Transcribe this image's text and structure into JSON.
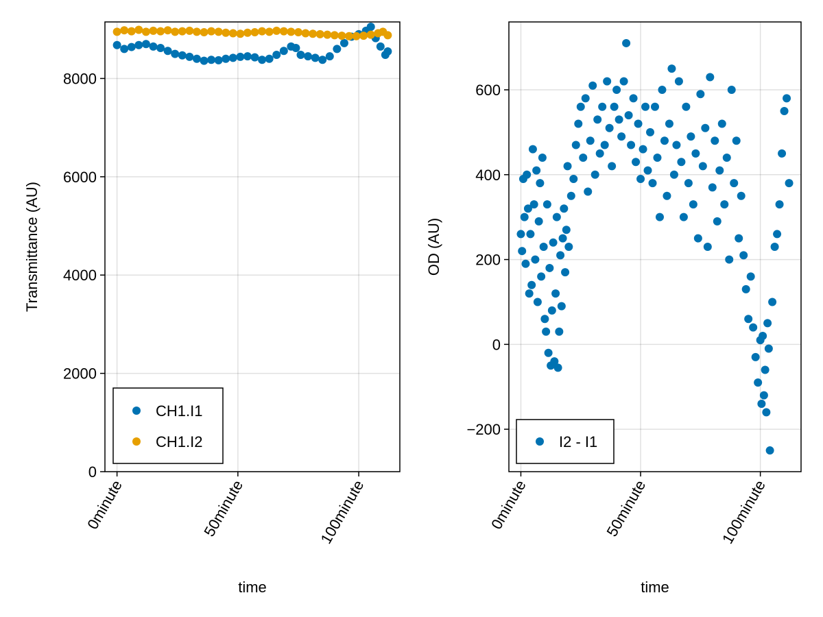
{
  "chart_data": [
    {
      "type": "scatter",
      "xlabel": "time",
      "ylabel": "Transmittance (AU)",
      "x_unit": "minute",
      "xlim": [
        -5,
        117
      ],
      "ylim": [
        0,
        9150
      ],
      "x_ticks": [
        0,
        50,
        100
      ],
      "x_tick_labels": [
        "0minute",
        "50minute",
        "100minute"
      ],
      "y_ticks": [
        0,
        2000,
        4000,
        6000,
        8000
      ],
      "y_tick_labels": [
        "0",
        "2000",
        "4000",
        "6000",
        "8000"
      ],
      "grid": true,
      "legend_position": "bottom-left",
      "series": [
        {
          "name": "CH1.I1",
          "color": "#0072b2",
          "points": [
            [
              0,
              8680
            ],
            [
              3,
              8600
            ],
            [
              6,
              8640
            ],
            [
              9,
              8680
            ],
            [
              12,
              8700
            ],
            [
              15,
              8650
            ],
            [
              18,
              8620
            ],
            [
              21,
              8560
            ],
            [
              24,
              8500
            ],
            [
              27,
              8470
            ],
            [
              30,
              8440
            ],
            [
              33,
              8400
            ],
            [
              36,
              8360
            ],
            [
              39,
              8380
            ],
            [
              42,
              8370
            ],
            [
              45,
              8400
            ],
            [
              48,
              8420
            ],
            [
              51,
              8440
            ],
            [
              54,
              8450
            ],
            [
              57,
              8430
            ],
            [
              60,
              8380
            ],
            [
              63,
              8400
            ],
            [
              66,
              8480
            ],
            [
              69,
              8560
            ],
            [
              72,
              8650
            ],
            [
              74,
              8620
            ],
            [
              76,
              8480
            ],
            [
              79,
              8450
            ],
            [
              82,
              8420
            ],
            [
              85,
              8380
            ],
            [
              88,
              8450
            ],
            [
              91,
              8600
            ],
            [
              94,
              8720
            ],
            [
              97,
              8850
            ],
            [
              100,
              8900
            ],
            [
              103,
              8970
            ],
            [
              105,
              9050
            ],
            [
              107,
              8820
            ],
            [
              109,
              8650
            ],
            [
              111,
              8480
            ],
            [
              112,
              8550
            ]
          ]
        },
        {
          "name": "CH1.I2",
          "color": "#e69f00",
          "points": [
            [
              0,
              8950
            ],
            [
              3,
              8980
            ],
            [
              6,
              8960
            ],
            [
              9,
              8990
            ],
            [
              12,
              8950
            ],
            [
              15,
              8970
            ],
            [
              18,
              8960
            ],
            [
              21,
              8980
            ],
            [
              24,
              8950
            ],
            [
              27,
              8960
            ],
            [
              30,
              8970
            ],
            [
              33,
              8950
            ],
            [
              36,
              8940
            ],
            [
              39,
              8960
            ],
            [
              42,
              8950
            ],
            [
              45,
              8930
            ],
            [
              48,
              8920
            ],
            [
              51,
              8910
            ],
            [
              54,
              8930
            ],
            [
              57,
              8940
            ],
            [
              60,
              8960
            ],
            [
              63,
              8950
            ],
            [
              66,
              8970
            ],
            [
              69,
              8960
            ],
            [
              72,
              8950
            ],
            [
              75,
              8940
            ],
            [
              78,
              8920
            ],
            [
              81,
              8910
            ],
            [
              84,
              8900
            ],
            [
              87,
              8890
            ],
            [
              90,
              8880
            ],
            [
              93,
              8870
            ],
            [
              96,
              8860
            ],
            [
              99,
              8860
            ],
            [
              102,
              8870
            ],
            [
              105,
              8890
            ],
            [
              108,
              8920
            ],
            [
              110,
              8950
            ],
            [
              112,
              8880
            ]
          ]
        }
      ]
    },
    {
      "type": "scatter",
      "xlabel": "time",
      "ylabel": "OD (AU)",
      "x_unit": "minute",
      "xlim": [
        -5,
        117
      ],
      "ylim": [
        -300,
        760
      ],
      "x_ticks": [
        0,
        50,
        100
      ],
      "x_tick_labels": [
        "0minute",
        "50minute",
        "100minute"
      ],
      "y_ticks": [
        -200,
        0,
        200,
        400,
        600
      ],
      "y_tick_labels": [
        "−200",
        "0",
        "200",
        "400",
        "600"
      ],
      "grid": true,
      "legend_position": "bottom-left",
      "series": [
        {
          "name": "I2 - I1",
          "color": "#0072b2",
          "points": [
            [
              0,
              260
            ],
            [
              0.5,
              220
            ],
            [
              1,
              390
            ],
            [
              1.5,
              300
            ],
            [
              2,
              190
            ],
            [
              2.5,
              400
            ],
            [
              3,
              320
            ],
            [
              3.5,
              120
            ],
            [
              4,
              260
            ],
            [
              4.5,
              140
            ],
            [
              5,
              460
            ],
            [
              5.5,
              330
            ],
            [
              6,
              200
            ],
            [
              6.5,
              410
            ],
            [
              7,
              100
            ],
            [
              7.5,
              290
            ],
            [
              8,
              380
            ],
            [
              8.5,
              160
            ],
            [
              9,
              440
            ],
            [
              9.5,
              230
            ],
            [
              10,
              60
            ],
            [
              10.5,
              30
            ],
            [
              11,
              330
            ],
            [
              11.5,
              -20
            ],
            [
              12,
              180
            ],
            [
              12.5,
              -50
            ],
            [
              13,
              80
            ],
            [
              13.5,
              240
            ],
            [
              14,
              -40
            ],
            [
              14.5,
              120
            ],
            [
              15,
              300
            ],
            [
              15.5,
              -55
            ],
            [
              16,
              30
            ],
            [
              16.5,
              210
            ],
            [
              17,
              90
            ],
            [
              17.5,
              250
            ],
            [
              18,
              320
            ],
            [
              18.5,
              170
            ],
            [
              19,
              270
            ],
            [
              19.5,
              420
            ],
            [
              20,
              230
            ],
            [
              21,
              350
            ],
            [
              22,
              390
            ],
            [
              23,
              470
            ],
            [
              24,
              520
            ],
            [
              25,
              560
            ],
            [
              26,
              440
            ],
            [
              27,
              580
            ],
            [
              28,
              360
            ],
            [
              29,
              480
            ],
            [
              30,
              610
            ],
            [
              31,
              400
            ],
            [
              32,
              530
            ],
            [
              33,
              450
            ],
            [
              34,
              560
            ],
            [
              35,
              470
            ],
            [
              36,
              620
            ],
            [
              37,
              510
            ],
            [
              38,
              420
            ],
            [
              39,
              560
            ],
            [
              40,
              600
            ],
            [
              41,
              530
            ],
            [
              42,
              490
            ],
            [
              43,
              620
            ],
            [
              44,
              710
            ],
            [
              45,
              540
            ],
            [
              46,
              470
            ],
            [
              47,
              580
            ],
            [
              48,
              430
            ],
            [
              49,
              520
            ],
            [
              50,
              390
            ],
            [
              51,
              460
            ],
            [
              52,
              560
            ],
            [
              53,
              410
            ],
            [
              54,
              500
            ],
            [
              55,
              380
            ],
            [
              56,
              560
            ],
            [
              57,
              440
            ],
            [
              58,
              300
            ],
            [
              59,
              600
            ],
            [
              60,
              480
            ],
            [
              61,
              350
            ],
            [
              62,
              520
            ],
            [
              63,
              650
            ],
            [
              64,
              400
            ],
            [
              65,
              470
            ],
            [
              66,
              620
            ],
            [
              67,
              430
            ],
            [
              68,
              300
            ],
            [
              69,
              560
            ],
            [
              70,
              380
            ],
            [
              71,
              490
            ],
            [
              72,
              330
            ],
            [
              73,
              450
            ],
            [
              74,
              250
            ],
            [
              75,
              590
            ],
            [
              76,
              420
            ],
            [
              77,
              510
            ],
            [
              78,
              230
            ],
            [
              79,
              630
            ],
            [
              80,
              370
            ],
            [
              81,
              480
            ],
            [
              82,
              290
            ],
            [
              83,
              410
            ],
            [
              84,
              520
            ],
            [
              85,
              330
            ],
            [
              86,
              440
            ],
            [
              87,
              200
            ],
            [
              88,
              600
            ],
            [
              89,
              380
            ],
            [
              90,
              480
            ],
            [
              91,
              250
            ],
            [
              92,
              350
            ],
            [
              93,
              210
            ],
            [
              94,
              130
            ],
            [
              95,
              60
            ],
            [
              96,
              160
            ],
            [
              97,
              40
            ],
            [
              98,
              -30
            ],
            [
              99,
              -90
            ],
            [
              100,
              10
            ],
            [
              100.5,
              -140
            ],
            [
              101,
              20
            ],
            [
              101.5,
              -120
            ],
            [
              102,
              -60
            ],
            [
              102.5,
              -160
            ],
            [
              103,
              50
            ],
            [
              103.5,
              -10
            ],
            [
              104,
              -250
            ],
            [
              105,
              100
            ],
            [
              106,
              230
            ],
            [
              107,
              260
            ],
            [
              108,
              330
            ],
            [
              109,
              450
            ],
            [
              110,
              550
            ],
            [
              111,
              580
            ],
            [
              112,
              380
            ]
          ]
        }
      ]
    }
  ]
}
